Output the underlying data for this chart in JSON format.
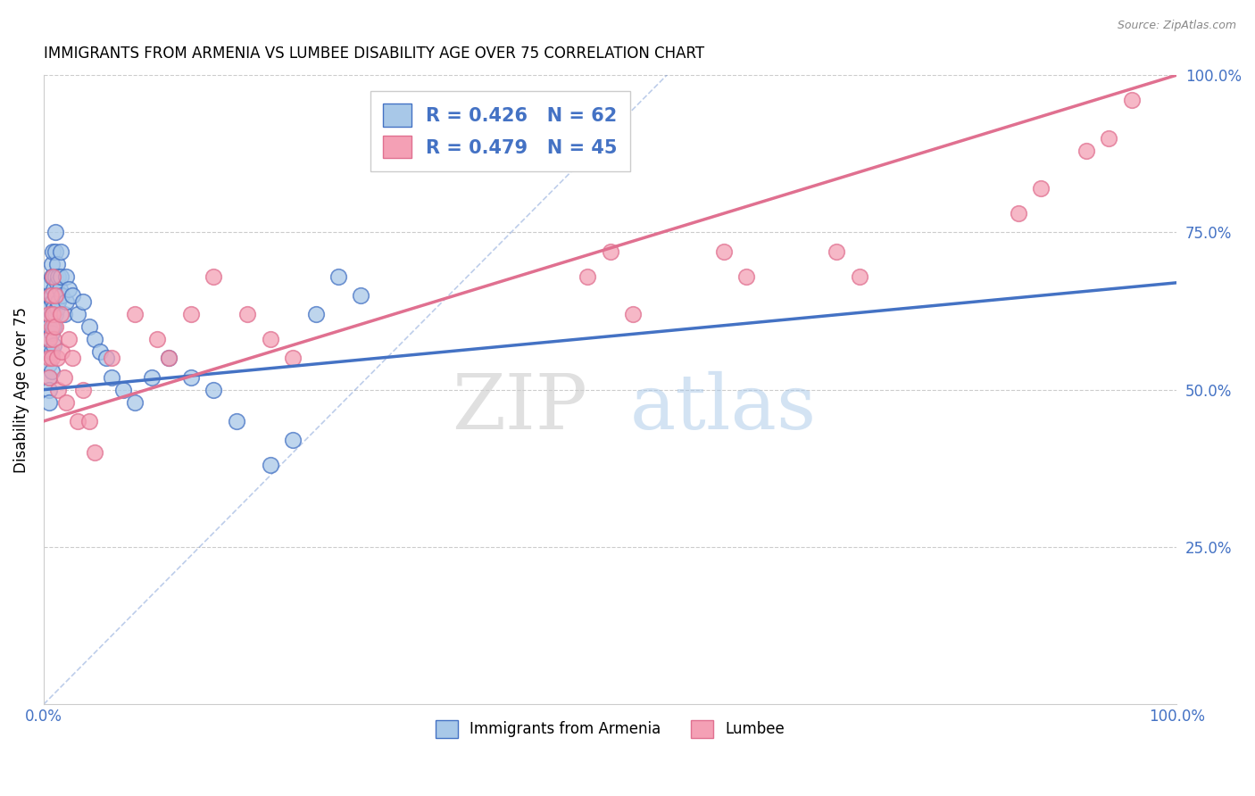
{
  "title": "IMMIGRANTS FROM ARMENIA VS LUMBEE DISABILITY AGE OVER 75 CORRELATION CHART",
  "source_text": "Source: ZipAtlas.com",
  "ylabel": "Disability Age Over 75",
  "xlim": [
    0,
    1.0
  ],
  "ylim": [
    0,
    1.0
  ],
  "legend_r1": "R = 0.426",
  "legend_n1": "N = 62",
  "legend_r2": "R = 0.479",
  "legend_n2": "N = 45",
  "color_blue": "#a8c8e8",
  "color_pink": "#f4a0b5",
  "color_blue_line": "#4472c4",
  "color_pink_line": "#e07090",
  "color_legend_text": "#4472c4",
  "blue_points_x": [
    0.005,
    0.005,
    0.005,
    0.005,
    0.005,
    0.005,
    0.005,
    0.005,
    0.005,
    0.005,
    0.007,
    0.007,
    0.007,
    0.007,
    0.007,
    0.007,
    0.007,
    0.008,
    0.008,
    0.008,
    0.009,
    0.009,
    0.009,
    0.009,
    0.01,
    0.01,
    0.01,
    0.01,
    0.01,
    0.012,
    0.012,
    0.012,
    0.013,
    0.013,
    0.014,
    0.015,
    0.015,
    0.016,
    0.018,
    0.02,
    0.02,
    0.022,
    0.025,
    0.03,
    0.035,
    0.04,
    0.045,
    0.05,
    0.055,
    0.06,
    0.07,
    0.08,
    0.095,
    0.11,
    0.13,
    0.15,
    0.17,
    0.2,
    0.22,
    0.24,
    0.26,
    0.28
  ],
  "blue_points_y": [
    0.67,
    0.65,
    0.63,
    0.6,
    0.58,
    0.56,
    0.54,
    0.52,
    0.5,
    0.48,
    0.7,
    0.68,
    0.65,
    0.62,
    0.59,
    0.56,
    0.53,
    0.72,
    0.68,
    0.64,
    0.66,
    0.63,
    0.6,
    0.57,
    0.75,
    0.72,
    0.68,
    0.65,
    0.62,
    0.7,
    0.67,
    0.63,
    0.68,
    0.64,
    0.66,
    0.72,
    0.68,
    0.65,
    0.62,
    0.68,
    0.64,
    0.66,
    0.65,
    0.62,
    0.64,
    0.6,
    0.58,
    0.56,
    0.55,
    0.52,
    0.5,
    0.48,
    0.52,
    0.55,
    0.52,
    0.5,
    0.45,
    0.38,
    0.42,
    0.62,
    0.68,
    0.65
  ],
  "pink_points_x": [
    0.005,
    0.005,
    0.005,
    0.005,
    0.006,
    0.007,
    0.007,
    0.008,
    0.008,
    0.009,
    0.01,
    0.01,
    0.012,
    0.013,
    0.015,
    0.016,
    0.018,
    0.02,
    0.022,
    0.025,
    0.03,
    0.035,
    0.04,
    0.045,
    0.06,
    0.08,
    0.1,
    0.11,
    0.13,
    0.15,
    0.18,
    0.2,
    0.22,
    0.48,
    0.5,
    0.52,
    0.6,
    0.62,
    0.7,
    0.72,
    0.86,
    0.88,
    0.92,
    0.94,
    0.96
  ],
  "pink_points_y": [
    0.62,
    0.58,
    0.55,
    0.52,
    0.65,
    0.6,
    0.55,
    0.68,
    0.62,
    0.58,
    0.65,
    0.6,
    0.55,
    0.5,
    0.62,
    0.56,
    0.52,
    0.48,
    0.58,
    0.55,
    0.45,
    0.5,
    0.45,
    0.4,
    0.55,
    0.62,
    0.58,
    0.55,
    0.62,
    0.68,
    0.62,
    0.58,
    0.55,
    0.68,
    0.72,
    0.62,
    0.72,
    0.68,
    0.72,
    0.68,
    0.78,
    0.82,
    0.88,
    0.9,
    0.96
  ],
  "blue_trendline": [
    0.0,
    1.0,
    0.5,
    0.67
  ],
  "pink_trendline": [
    0.0,
    1.0,
    0.45,
    1.0
  ],
  "dashed_line": [
    0.0,
    0.55,
    0.0,
    1.0
  ]
}
